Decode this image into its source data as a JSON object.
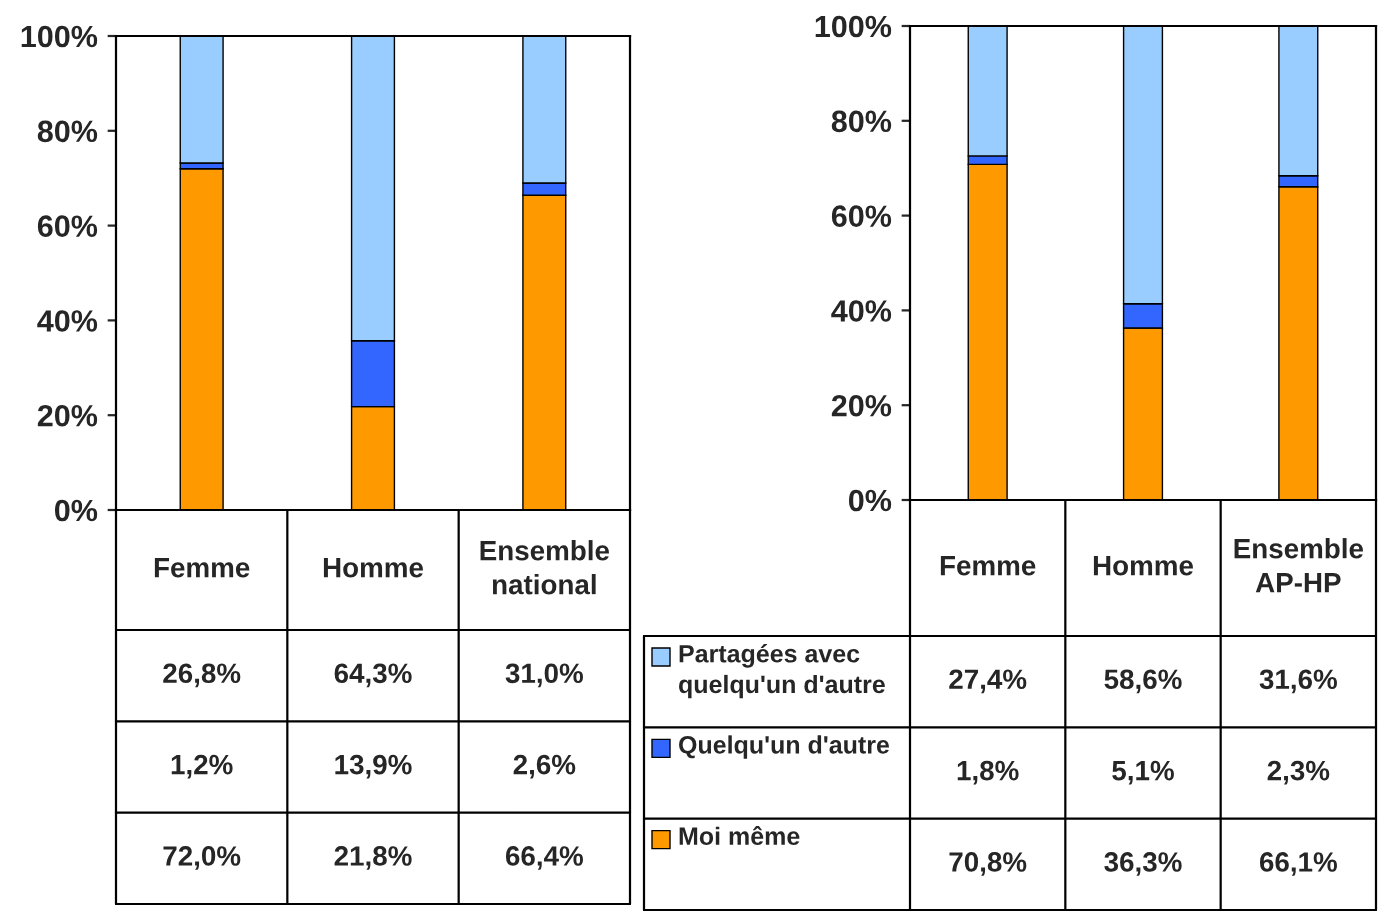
{
  "chart_data": [
    {
      "type": "bar",
      "stacked": true,
      "categories": [
        "Femme",
        "Homme",
        "Ensemble national"
      ],
      "ylim": [
        0,
        100
      ],
      "yticks": [
        {
          "value": 0,
          "label": "0%"
        },
        {
          "value": 20,
          "label": "20%"
        },
        {
          "value": 40,
          "label": "40%"
        },
        {
          "value": 60,
          "label": "60%"
        },
        {
          "value": 80,
          "label": "80%"
        },
        {
          "value": 100,
          "label": "100%"
        }
      ],
      "grid": false,
      "series": [
        {
          "color": "#ff9900",
          "values": [
            72.0,
            21.8,
            66.4
          ],
          "value_labels": [
            "72,0%",
            "21,8%",
            "66,4%"
          ]
        },
        {
          "color": "#3366ff",
          "values": [
            1.2,
            13.9,
            2.6
          ],
          "value_labels": [
            "1,2%",
            "13,9%",
            "2,6%"
          ]
        },
        {
          "color": "#99ccff",
          "values": [
            26.8,
            64.3,
            31.0
          ],
          "value_labels": [
            "26,8%",
            "64,3%",
            "31,0%"
          ]
        }
      ]
    },
    {
      "type": "bar",
      "stacked": true,
      "categories": [
        "Femme",
        "Homme",
        "Ensemble AP-HP"
      ],
      "ylim": [
        0,
        100
      ],
      "yticks": [
        {
          "value": 0,
          "label": "0%"
        },
        {
          "value": 20,
          "label": "20%"
        },
        {
          "value": 40,
          "label": "40%"
        },
        {
          "value": 60,
          "label": "60%"
        },
        {
          "value": 80,
          "label": "80%"
        },
        {
          "value": 100,
          "label": "100%"
        }
      ],
      "grid": false,
      "legend": "bottom left",
      "series": [
        {
          "name": "Moi même",
          "color": "#ff9900",
          "values": [
            70.8,
            36.3,
            66.1
          ],
          "value_labels": [
            "70,8%",
            "36,3%",
            "66,1%"
          ]
        },
        {
          "name": "Quelqu'un d'autre",
          "color": "#3366ff",
          "values": [
            1.8,
            5.1,
            2.3
          ],
          "value_labels": [
            "1,8%",
            "5,1%",
            "2,3%"
          ]
        },
        {
          "name": "Partagées avec quelqu'un d'autre",
          "color": "#99ccff",
          "values": [
            27.4,
            58.6,
            31.6
          ],
          "value_labels": [
            "27,4%",
            "58,6%",
            "31,6%"
          ]
        }
      ]
    }
  ]
}
